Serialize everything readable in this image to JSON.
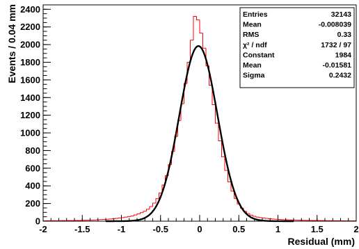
{
  "chart_data": {
    "type": "line",
    "xlabel": "Residual (mm)",
    "ylabel": "Events / 0.04 mm",
    "xlim": [
      -2,
      2
    ],
    "ylim": [
      0,
      2450
    ],
    "x_ticks": [
      -2,
      -1.5,
      -1,
      -0.5,
      0,
      0.5,
      1,
      1.5,
      2
    ],
    "x_tick_labels": [
      "-2",
      "-1.5",
      "-1",
      "-0.5",
      "0",
      "0.5",
      "1",
      "1.5",
      "2"
    ],
    "y_ticks": [
      0,
      200,
      400,
      600,
      800,
      1000,
      1200,
      1400,
      1600,
      1800,
      2000,
      2200,
      2400
    ],
    "y_tick_labels": [
      "0",
      "200",
      "400",
      "600",
      "800",
      "1000",
      "1200",
      "1400",
      "1600",
      "1800",
      "2000",
      "2200",
      "2400"
    ],
    "series": [
      {
        "kind": "histogram",
        "color": "#ff0000",
        "bin_width": 0.04,
        "bin_low_edges": [
          -2.0,
          -1.96,
          -1.92,
          -1.88,
          -1.84,
          -1.8,
          -1.76,
          -1.72,
          -1.68,
          -1.64,
          -1.6,
          -1.56,
          -1.52,
          -1.48,
          -1.44,
          -1.4,
          -1.36,
          -1.32,
          -1.28,
          -1.24,
          -1.2,
          -1.16,
          -1.12,
          -1.08,
          -1.04,
          -1.0,
          -0.96,
          -0.92,
          -0.88,
          -0.84,
          -0.8,
          -0.76,
          -0.72,
          -0.68,
          -0.64,
          -0.6,
          -0.56,
          -0.52,
          -0.48,
          -0.44,
          -0.4,
          -0.36,
          -0.32,
          -0.28,
          -0.24,
          -0.2,
          -0.16,
          -0.12,
          -0.08,
          -0.04,
          0.0,
          0.04,
          0.08,
          0.12,
          0.16,
          0.2,
          0.24,
          0.28,
          0.32,
          0.36,
          0.4,
          0.44,
          0.48,
          0.52,
          0.56,
          0.6,
          0.64,
          0.68,
          0.72,
          0.76,
          0.8,
          0.84,
          0.88,
          0.92,
          0.96,
          1.0,
          1.04,
          1.08,
          1.12,
          1.16,
          1.2,
          1.24,
          1.28,
          1.32,
          1.36,
          1.4,
          1.44,
          1.48,
          1.52,
          1.56,
          1.6,
          1.64,
          1.68,
          1.72,
          1.76,
          1.8,
          1.84,
          1.88,
          1.92,
          1.96
        ],
        "values": [
          4,
          5,
          4,
          6,
          5,
          6,
          7,
          6,
          8,
          7,
          9,
          8,
          10,
          11,
          12,
          13,
          14,
          16,
          18,
          20,
          22,
          25,
          28,
          32,
          36,
          40,
          46,
          52,
          60,
          70,
          82,
          96,
          112,
          135,
          165,
          205,
          255,
          320,
          410,
          515,
          640,
          790,
          960,
          1140,
          1330,
          1560,
          1800,
          2050,
          2320,
          2280,
          2130,
          1960,
          1760,
          1540,
          1320,
          1110,
          910,
          730,
          575,
          445,
          340,
          258,
          195,
          148,
          112,
          86,
          68,
          55,
          46,
          40,
          35,
          31,
          28,
          25,
          22,
          20,
          18,
          16,
          15,
          14,
          13,
          12,
          11,
          10,
          9,
          9,
          8,
          8,
          7,
          7,
          6,
          6,
          5,
          5,
          5,
          4,
          4,
          4,
          4,
          4
        ]
      },
      {
        "kind": "gaussian-fit",
        "color": "#000000",
        "function": "gaus",
        "constant": 1984,
        "mean": -0.01581,
        "sigma": 0.2432
      }
    ],
    "stats_box": {
      "position": "top-right",
      "rows": [
        {
          "label": "Entries",
          "value": "32143"
        },
        {
          "label": "Mean",
          "value": "-0.008039"
        },
        {
          "label": "RMS",
          "value": "0.33"
        },
        {
          "label": "χ² / ndf",
          "value": "1732 / 97"
        },
        {
          "label": "Constant",
          "value": "1984"
        },
        {
          "label": "Mean",
          "value": "-0.01581"
        },
        {
          "label": "Sigma",
          "value": "0.2432"
        }
      ]
    }
  }
}
